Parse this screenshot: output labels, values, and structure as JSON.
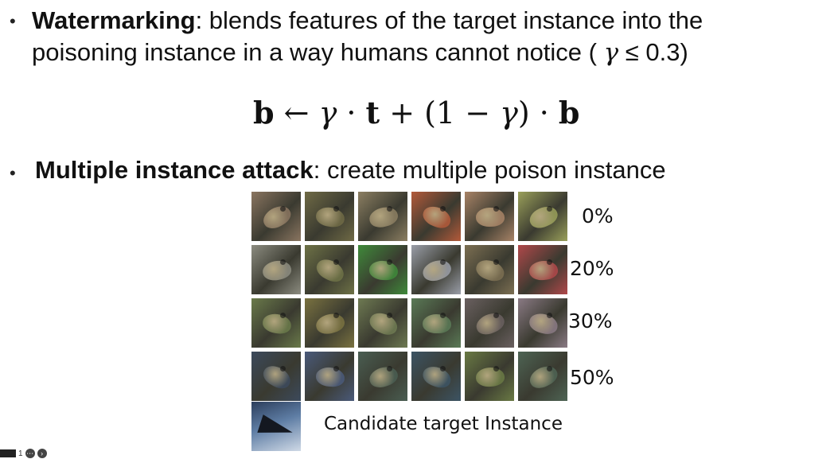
{
  "bullets": [
    {
      "symbol": "•",
      "title": "Watermarking",
      "text_line1": ": blends features of the target instance into the",
      "text_line2": "poisoning instance in a way humans cannot notice (",
      "gamma_symbol": "γ",
      "gamma_condition": "≤ 0.3)"
    },
    {
      "symbol": "•",
      "title": "Multiple instance attack",
      "text": ": create multiple poison instance"
    }
  ],
  "formula": {
    "b": "b",
    "arrow": " ← ",
    "gamma": "γ",
    "dot": " · ",
    "t": "t",
    "plus": " + (1 − ",
    "close": ")"
  },
  "grid": {
    "rows": [
      {
        "label": "0%",
        "colors": [
          "#8a7560",
          "#6f6a45",
          "#8c7f62",
          "#b35a3a",
          "#a88366",
          "#9aa05a"
        ]
      },
      {
        "label": "20%",
        "colors": [
          "#8c8c80",
          "#6e7246",
          "#3f8a3a",
          "#9a9ea8",
          "#7c6f52",
          "#b0484a"
        ]
      },
      {
        "label": "30%",
        "colors": [
          "#6a7a4a",
          "#7a7240",
          "#6e7a52",
          "#5a7a56",
          "#6a6060",
          "#8a7a84"
        ]
      },
      {
        "label": "50%",
        "colors": [
          "#3c4a5c",
          "#4a5a7a",
          "#4a5e52",
          "#3c5464",
          "#6a7a44",
          "#4e6454"
        ]
      }
    ]
  },
  "candidate": {
    "label": "Candidate target Instance"
  },
  "controls": {
    "counter": "1",
    "menu_icon": "more-icon",
    "next_icon": "arrow-right-icon"
  }
}
